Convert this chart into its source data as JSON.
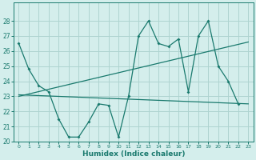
{
  "x": [
    0,
    1,
    2,
    3,
    4,
    5,
    6,
    7,
    8,
    9,
    10,
    11,
    12,
    13,
    14,
    15,
    16,
    17,
    18,
    19,
    20,
    21,
    22,
    23
  ],
  "line1": [
    26.5,
    24.8,
    23.7,
    23.3,
    21.5,
    20.3,
    20.3,
    21.3,
    22.5,
    22.4,
    20.3,
    23.0,
    27.0,
    28.0,
    26.5,
    26.3,
    26.8,
    23.3,
    27.0,
    28.0,
    25.0,
    24.0,
    22.5,
    null
  ],
  "line2_x": [
    0,
    23
  ],
  "line2_y": [
    23.0,
    26.6
  ],
  "line3_x": [
    0,
    23
  ],
  "line3_y": [
    23.1,
    22.5
  ],
  "color": "#1a7a6e",
  "bg_color": "#d4eeec",
  "grid_color": "#aed4d0",
  "xlabel": "Humidex (Indice chaleur)",
  "ylim": [
    20,
    29
  ],
  "xlim": [
    -0.5,
    23.5
  ],
  "yticks": [
    20,
    21,
    22,
    23,
    24,
    25,
    26,
    27,
    28
  ],
  "xticks": [
    0,
    1,
    2,
    3,
    4,
    5,
    6,
    7,
    8,
    9,
    10,
    11,
    12,
    13,
    14,
    15,
    16,
    17,
    18,
    19,
    20,
    21,
    22,
    23
  ]
}
